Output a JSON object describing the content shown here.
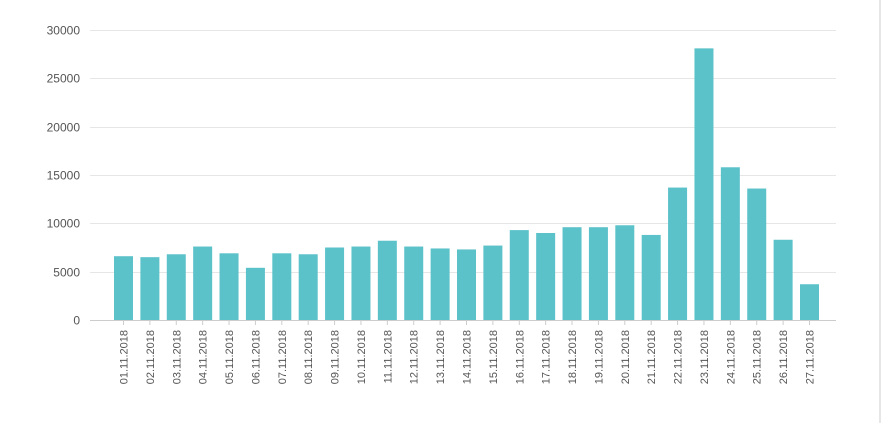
{
  "chart_data": {
    "type": "bar",
    "categories": [
      "01.11.2018",
      "02.11.2018",
      "03.11.2018",
      "04.11.2018",
      "05.11.2018",
      "06.11.2018",
      "07.11.2018",
      "08.11.2018",
      "09.11.2018",
      "10.11.2018",
      "11.11.2018",
      "12.11.2018",
      "13.11.2018",
      "14.11.2018",
      "15.11.2018",
      "16.11.2018",
      "17.11.2018",
      "18.11.2018",
      "19.11.2018",
      "20.11.2018",
      "21.11.2018",
      "22.11.2018",
      "23.11.2018",
      "24.11.2018",
      "25.11.2018",
      "26.11.2018",
      "27.11.2018"
    ],
    "values": [
      6600,
      6500,
      6800,
      7600,
      6900,
      5400,
      6900,
      6800,
      7500,
      7600,
      8200,
      7600,
      7400,
      7300,
      7700,
      9300,
      9000,
      9600,
      9600,
      9800,
      8800,
      13700,
      28100,
      15800,
      13600,
      8300,
      3700
    ],
    "yticks": [
      0,
      5000,
      10000,
      15000,
      20000,
      25000,
      30000
    ],
    "ylim": [
      0,
      30000
    ],
    "title": "",
    "xlabel": "",
    "ylabel": "",
    "grid": true,
    "bar_color": "#5bc2c9",
    "grid_color": "#e6e6e6",
    "axis_color": "#cccccc",
    "label_color": "#555555"
  }
}
